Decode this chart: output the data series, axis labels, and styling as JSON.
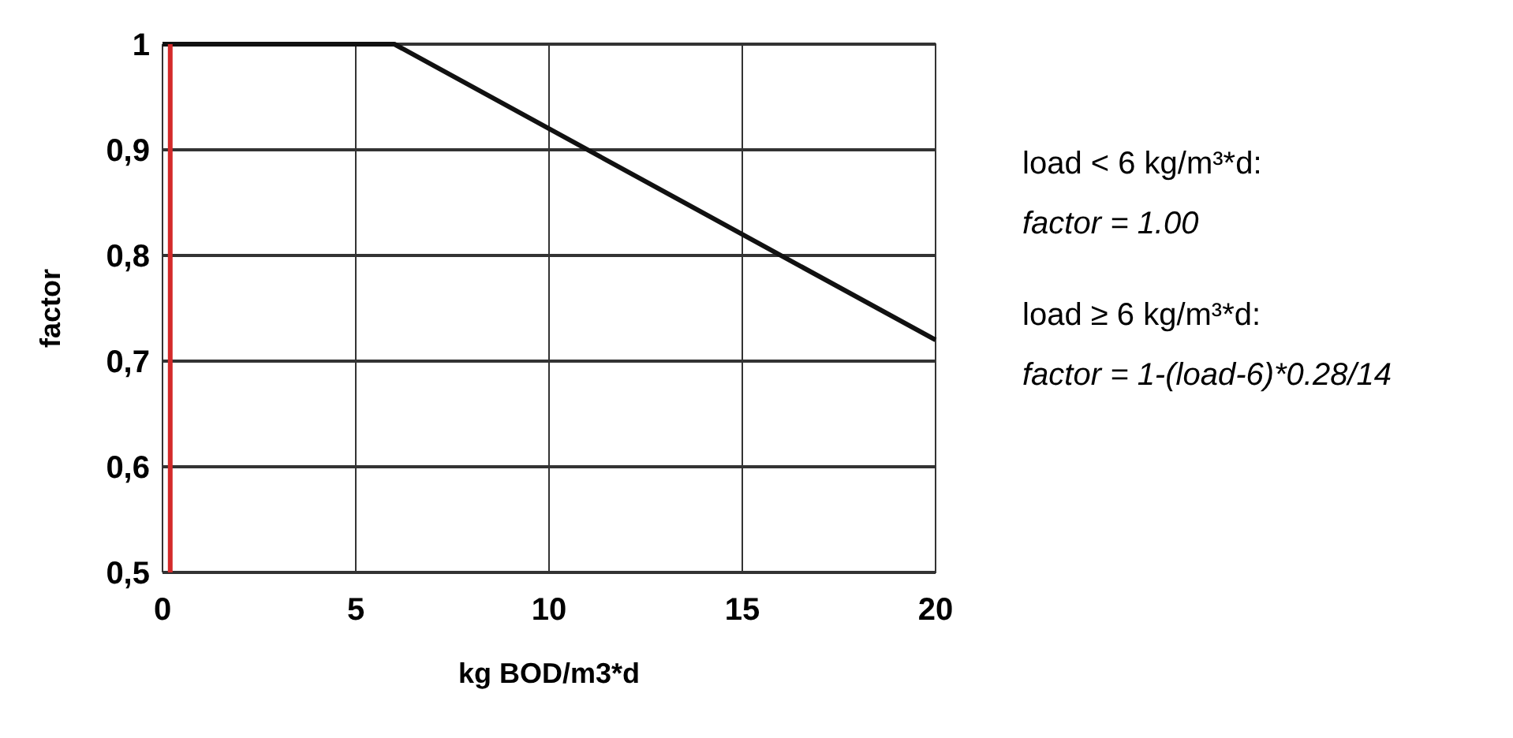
{
  "chart_data": {
    "type": "line",
    "xlabel": "kg BOD/m3*d",
    "ylabel": "factor",
    "x": [
      0,
      6,
      20
    ],
    "series": [
      {
        "color": "#111111",
        "values": [
          1,
          1,
          0.72
        ]
      }
    ],
    "xlim": [
      0,
      20
    ],
    "xticks": [
      0,
      5,
      10,
      15,
      20
    ],
    "ylim": [
      0.5,
      1
    ],
    "yticks": [
      {
        "value": 0.5,
        "label": "0,5"
      },
      {
        "value": 0.6,
        "label": "0,6"
      },
      {
        "value": 0.7,
        "label": "0,7"
      },
      {
        "value": 0.8,
        "label": "0,8"
      },
      {
        "value": 0.9,
        "label": "0,9"
      },
      1
    ],
    "grid": true,
    "marker": "none",
    "line_style": "solid",
    "ref_lines": [
      {
        "axis": "x",
        "value": 0.2,
        "color": "#d42a2a"
      }
    ],
    "annotations": [
      "load < 6 kg/m³*d:",
      "factor = 1.00",
      "load ≥ 6 kg/m³*d:",
      "factor = 1-(load-6)*0.28/14"
    ]
  }
}
